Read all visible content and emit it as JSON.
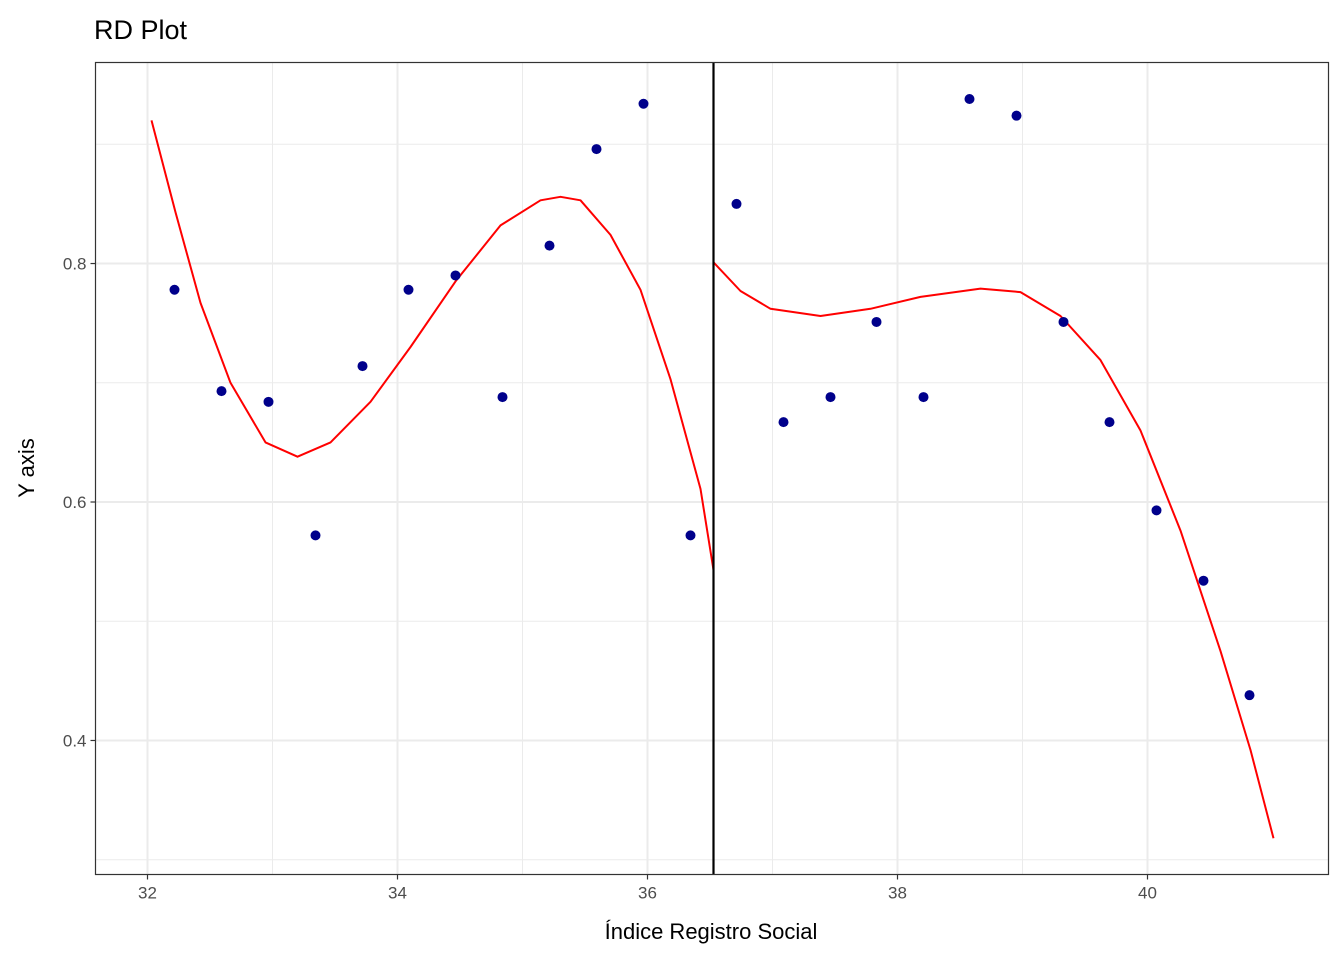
{
  "chart_data": {
    "type": "scatter",
    "title": "RD Plot",
    "xlabel": "Índice Registro Social",
    "ylabel": "Y axis",
    "xlim": [
      31.584,
      41.448
    ],
    "ylim": [
      0.2876,
      0.9686
    ],
    "x_ticks": [
      32,
      34,
      36,
      38,
      40
    ],
    "x_tick_labels": [
      "32",
      "34",
      "36",
      "38",
      "40"
    ],
    "y_ticks": [
      0.4,
      0.6,
      0.8
    ],
    "y_tick_labels": [
      "0.4",
      "0.6",
      "0.8"
    ],
    "grid": true,
    "cutoff": 36.528,
    "colors": {
      "points": "#00008B",
      "fit": "#FF0000",
      "cutoff": "#000000",
      "grid": "#EBEBEB"
    },
    "points": [
      [
        32.216,
        0.778
      ],
      [
        32.592,
        0.693
      ],
      [
        32.968,
        0.684
      ],
      [
        33.344,
        0.572
      ],
      [
        33.72,
        0.714
      ],
      [
        34.088,
        0.778
      ],
      [
        34.464,
        0.79
      ],
      [
        34.84,
        0.688
      ],
      [
        35.216,
        0.815
      ],
      [
        35.592,
        0.896
      ],
      [
        35.968,
        0.934
      ],
      [
        36.344,
        0.572
      ],
      [
        36.712,
        0.85
      ],
      [
        37.088,
        0.667
      ],
      [
        37.464,
        0.688
      ],
      [
        37.832,
        0.751
      ],
      [
        38.208,
        0.688
      ],
      [
        38.576,
        0.938
      ],
      [
        38.952,
        0.924
      ],
      [
        39.328,
        0.751
      ],
      [
        39.696,
        0.667
      ],
      [
        40.072,
        0.593
      ],
      [
        40.448,
        0.534
      ],
      [
        40.816,
        0.438
      ]
    ],
    "fit_left": [
      [
        32.032,
        0.92
      ],
      [
        32.224,
        0.843
      ],
      [
        32.424,
        0.767
      ],
      [
        32.664,
        0.7
      ],
      [
        32.944,
        0.65
      ],
      [
        33.2,
        0.638
      ],
      [
        33.464,
        0.65
      ],
      [
        33.784,
        0.684
      ],
      [
        34.104,
        0.73
      ],
      [
        34.464,
        0.785
      ],
      [
        34.824,
        0.832
      ],
      [
        35.144,
        0.853
      ],
      [
        35.304,
        0.856
      ],
      [
        35.464,
        0.853
      ],
      [
        35.704,
        0.824
      ],
      [
        35.944,
        0.778
      ],
      [
        36.184,
        0.703
      ],
      [
        36.424,
        0.611
      ],
      [
        36.528,
        0.543
      ]
    ],
    "fit_right": [
      [
        36.528,
        0.801
      ],
      [
        36.744,
        0.777
      ],
      [
        36.984,
        0.762
      ],
      [
        37.384,
        0.756
      ],
      [
        37.784,
        0.762
      ],
      [
        38.184,
        0.772
      ],
      [
        38.664,
        0.779
      ],
      [
        38.984,
        0.776
      ],
      [
        39.304,
        0.756
      ],
      [
        39.624,
        0.719
      ],
      [
        39.944,
        0.66
      ],
      [
        40.264,
        0.576
      ],
      [
        40.584,
        0.475
      ],
      [
        40.824,
        0.392
      ],
      [
        41.008,
        0.318
      ]
    ]
  }
}
